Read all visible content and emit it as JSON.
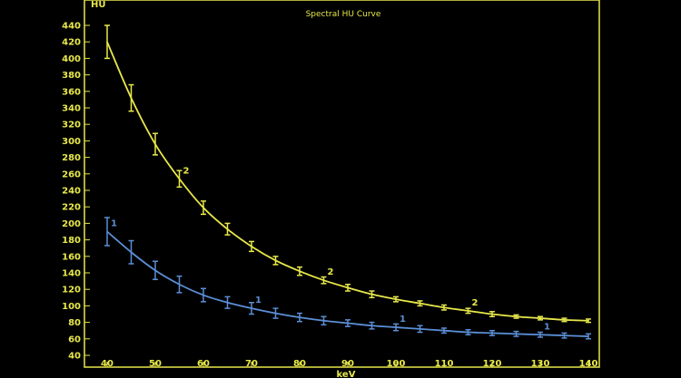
{
  "chart_data": {
    "type": "line",
    "title": "Spectral HU Curve",
    "xlabel": "keV",
    "ylabel": "HU",
    "xlim": [
      35,
      145
    ],
    "ylim": [
      40,
      450
    ],
    "x_ticks": [
      "40",
      "50",
      "60",
      "70",
      "80",
      "90",
      "100",
      "110",
      "120",
      "130",
      "140"
    ],
    "y_ticks": [
      "40",
      "60",
      "80",
      "100",
      "120",
      "140",
      "160",
      "180",
      "200",
      "220",
      "240",
      "260",
      "280",
      "300",
      "320",
      "340",
      "360",
      "380",
      "400",
      "420",
      "440"
    ],
    "grid": false,
    "colors": {
      "background": "#000000",
      "axis": "#E8E84A",
      "series_2": "#E8E84A",
      "series_1": "#5B8FD6"
    },
    "x": [
      40,
      45,
      50,
      55,
      60,
      65,
      70,
      75,
      80,
      85,
      90,
      95,
      100,
      105,
      110,
      115,
      120,
      125,
      130,
      135,
      140
    ],
    "series": [
      {
        "marker": "2",
        "color": "#E8E84A",
        "values": [
          420,
          352,
          296,
          254,
          219,
          193,
          172,
          155,
          142,
          131,
          122,
          114,
          108,
          103,
          98,
          94,
          90,
          87,
          85,
          83,
          82
        ],
        "errors": [
          20,
          16,
          13,
          10,
          8,
          7,
          6,
          5,
          5,
          4,
          4,
          4,
          3,
          3,
          3,
          3,
          3,
          2,
          2,
          2,
          2
        ],
        "marker_positions": [
          [
            55,
            254
          ],
          [
            85,
            131
          ],
          [
            115,
            94
          ]
        ]
      },
      {
        "marker": "1",
        "color": "#5B8FD6",
        "values": [
          190,
          165,
          143,
          126,
          113,
          104,
          97,
          91,
          86,
          82,
          79,
          76,
          74,
          72,
          70,
          68,
          67,
          66,
          65,
          64,
          63
        ],
        "errors": [
          17,
          14,
          11,
          10,
          8,
          7,
          7,
          6,
          5,
          5,
          4,
          4,
          4,
          4,
          3,
          3,
          3,
          3,
          3,
          3,
          3
        ],
        "marker_positions": [
          [
            40,
            190
          ],
          [
            70,
            97
          ],
          [
            100,
            74
          ],
          [
            130,
            65
          ]
        ]
      }
    ]
  }
}
